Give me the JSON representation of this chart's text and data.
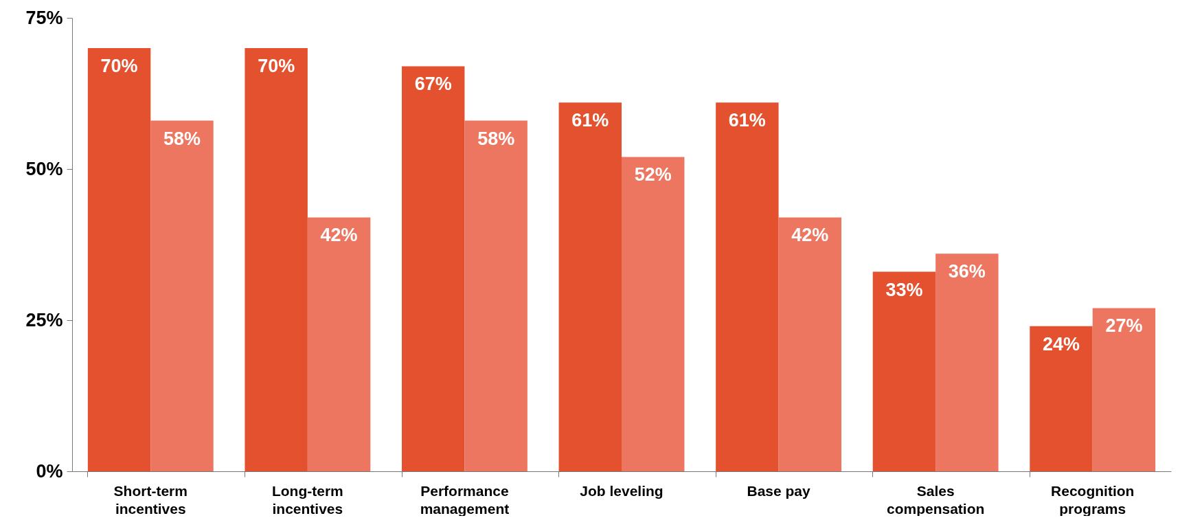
{
  "chart_data": {
    "type": "bar",
    "categories": [
      "Short-term\nincentives",
      "Long-term\nincentives",
      "Performance\nmanagement",
      "Job leveling",
      "Base pay",
      "Sales\ncompensation",
      "Recognition\nprograms"
    ],
    "series": [
      {
        "color": "#e4512f",
        "values": [
          70,
          70,
          67,
          61,
          61,
          33,
          24
        ],
        "value_labels": [
          "70%",
          "70%",
          "67%",
          "61%",
          "61%",
          "33%",
          "24%"
        ]
      },
      {
        "color": "#ec7660",
        "values": [
          58,
          42,
          58,
          52,
          42,
          36,
          27
        ],
        "value_labels": [
          "58%",
          "42%",
          "58%",
          "52%",
          "42%",
          "36%",
          "27%"
        ]
      }
    ],
    "ylim": [
      0,
      75
    ],
    "yticks": [
      {
        "value": 0,
        "label": "0%"
      },
      {
        "value": 25,
        "label": "25%"
      },
      {
        "value": 50,
        "label": "50%"
      },
      {
        "value": 75,
        "label": "75%"
      }
    ],
    "grid": false,
    "legend": false
  }
}
